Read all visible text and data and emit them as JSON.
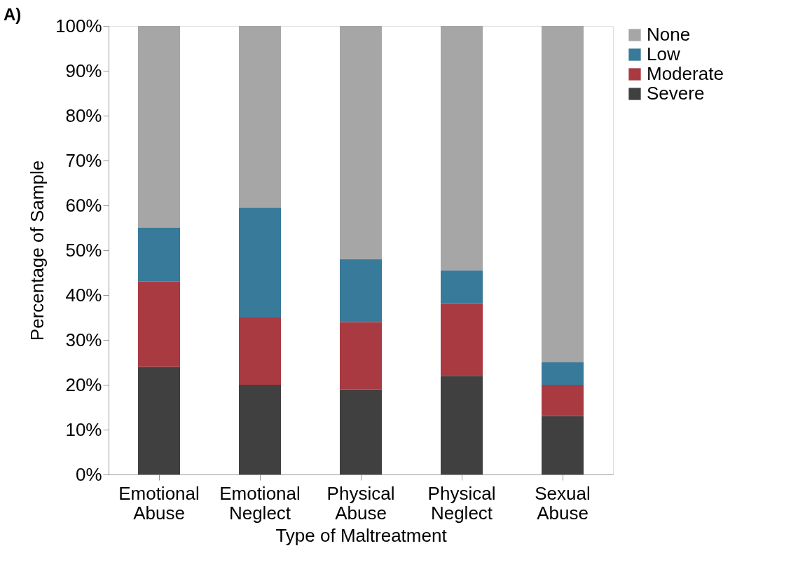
{
  "chart_data": {
    "type": "bar",
    "stacked": true,
    "annotations": [
      "A)"
    ],
    "xlabel": "Type of Maltreatment",
    "ylabel": "Percentage of Sample",
    "categories": [
      "Emotional Abuse",
      "Emotional Neglect",
      "Physical Abuse",
      "Physical Neglect",
      "Sexual Abuse"
    ],
    "series": [
      {
        "name": "Severe",
        "color": "#404040",
        "values": [
          24,
          20,
          19,
          22,
          13
        ]
      },
      {
        "name": "Moderate",
        "color": "#a93a42",
        "values": [
          19,
          15,
          15,
          16,
          7
        ]
      },
      {
        "name": "Low",
        "color": "#377a9a",
        "values": [
          12,
          24.5,
          14,
          7.5,
          5
        ]
      },
      {
        "name": "None",
        "color": "#a6a6a6",
        "values": [
          45,
          40.5,
          52,
          54.5,
          75
        ]
      }
    ],
    "ylim": [
      0,
      100
    ],
    "yticks": [
      {
        "value": 0,
        "label": "0%"
      },
      {
        "value": 10,
        "label": "10%"
      },
      {
        "value": 20,
        "label": "20%"
      },
      {
        "value": 30,
        "label": "30%"
      },
      {
        "value": 40,
        "label": "40%"
      },
      {
        "value": 50,
        "label": "50%"
      },
      {
        "value": 60,
        "label": "60%"
      },
      {
        "value": 70,
        "label": "70%"
      },
      {
        "value": 80,
        "label": "80%"
      },
      {
        "value": 90,
        "label": "90%"
      },
      {
        "value": 100,
        "label": "100%"
      }
    ],
    "grid": false,
    "legend": "right"
  }
}
